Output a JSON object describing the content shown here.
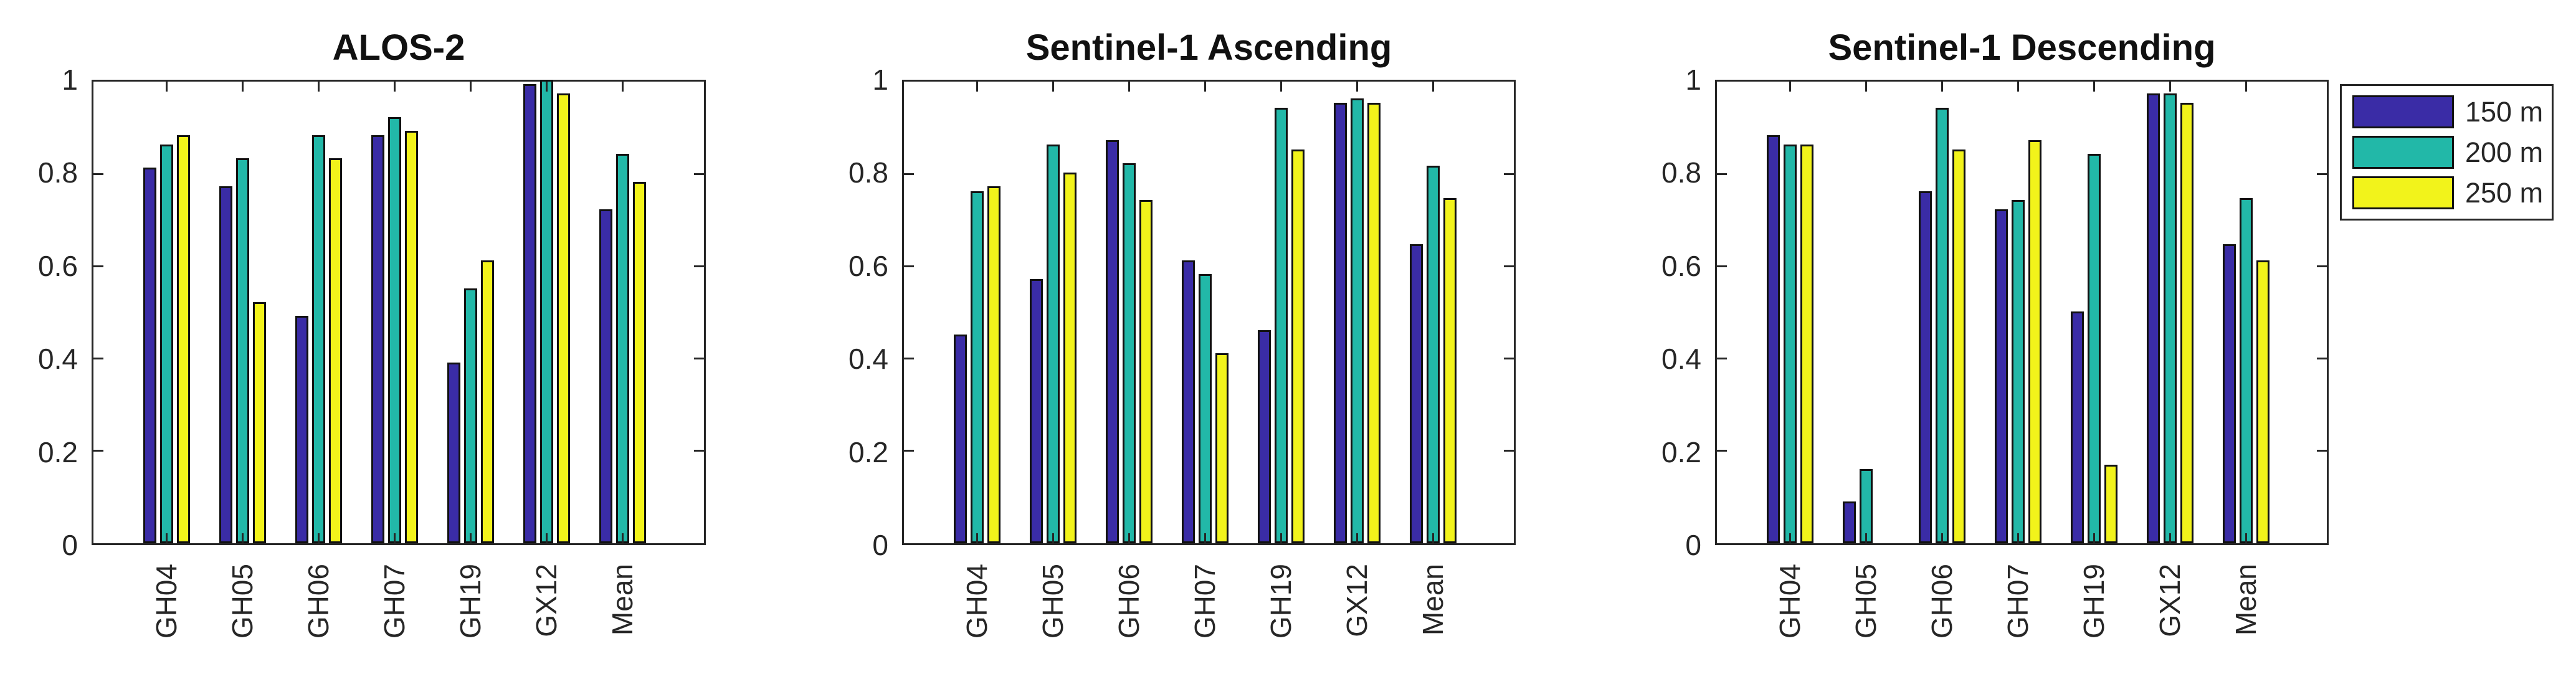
{
  "figure": {
    "background": "#ffffff"
  },
  "colors": {
    "series": [
      "#3A2CA6",
      "#22B8A8",
      "#F2F31B"
    ],
    "bar_edge": "#111111",
    "axis": "#262626",
    "title_text": "#111111"
  },
  "legend": {
    "position": "outside-top-right",
    "items": [
      {
        "label": "150 m",
        "color": "#3A2CA6"
      },
      {
        "label": "200 m",
        "color": "#22B8A8"
      },
      {
        "label": "250 m",
        "color": "#F2F31B"
      }
    ]
  },
  "chart_data": [
    {
      "type": "bar",
      "title": "ALOS-2",
      "categories": [
        "GH04",
        "GH05",
        "GH06",
        "GH07",
        "GH19",
        "GX12",
        "Mean"
      ],
      "series": [
        {
          "name": "150 m",
          "values": [
            0.81,
            0.77,
            0.49,
            0.88,
            0.39,
            0.99,
            0.72
          ]
        },
        {
          "name": "200 m",
          "values": [
            0.86,
            0.83,
            0.88,
            0.92,
            0.55,
            1.0,
            0.84
          ]
        },
        {
          "name": "250 m",
          "values": [
            0.88,
            0.52,
            0.83,
            0.89,
            0.61,
            0.97,
            0.78
          ]
        }
      ],
      "xlabel": "",
      "ylabel": "",
      "ylim": [
        0,
        1
      ],
      "yticks": [
        0,
        0.2,
        0.4,
        0.6,
        0.8,
        1
      ],
      "ytick_labels": [
        "0",
        "0.2",
        "0.4",
        "0.6",
        "0.8",
        "1"
      ],
      "grid": false
    },
    {
      "type": "bar",
      "title": "Sentinel-1 Ascending",
      "categories": [
        "GH04",
        "GH05",
        "GH06",
        "GH07",
        "GH19",
        "GX12",
        "Mean"
      ],
      "series": [
        {
          "name": "150 m",
          "values": [
            0.45,
            0.57,
            0.87,
            0.61,
            0.46,
            0.95,
            0.645
          ]
        },
        {
          "name": "200 m",
          "values": [
            0.76,
            0.86,
            0.82,
            0.58,
            0.94,
            0.96,
            0.815
          ]
        },
        {
          "name": "250 m",
          "values": [
            0.77,
            0.8,
            0.74,
            0.41,
            0.85,
            0.95,
            0.745
          ]
        }
      ],
      "xlabel": "",
      "ylabel": "",
      "ylim": [
        0,
        1
      ],
      "yticks": [
        0,
        0.2,
        0.4,
        0.6,
        0.8,
        1
      ],
      "ytick_labels": [
        "0",
        "0.2",
        "0.4",
        "0.6",
        "0.8",
        "1"
      ],
      "grid": false
    },
    {
      "type": "bar",
      "title": "Sentinel-1 Descending",
      "categories": [
        "GH04",
        "GH05",
        "GH06",
        "GH07",
        "GH19",
        "GX12",
        "Mean"
      ],
      "series": [
        {
          "name": "150 m",
          "values": [
            0.88,
            0.09,
            0.76,
            0.72,
            0.5,
            0.97,
            0.645
          ]
        },
        {
          "name": "200 m",
          "values": [
            0.86,
            0.16,
            0.94,
            0.74,
            0.84,
            0.97,
            0.745
          ]
        },
        {
          "name": "250 m",
          "values": [
            0.86,
            0.0,
            0.85,
            0.87,
            0.17,
            0.95,
            0.61
          ]
        }
      ],
      "xlabel": "",
      "ylabel": "",
      "ylim": [
        0,
        1
      ],
      "yticks": [
        0,
        0.2,
        0.4,
        0.6,
        0.8,
        1
      ],
      "ytick_labels": [
        "0",
        "0.2",
        "0.4",
        "0.6",
        "0.8",
        "1"
      ],
      "grid": false
    }
  ]
}
